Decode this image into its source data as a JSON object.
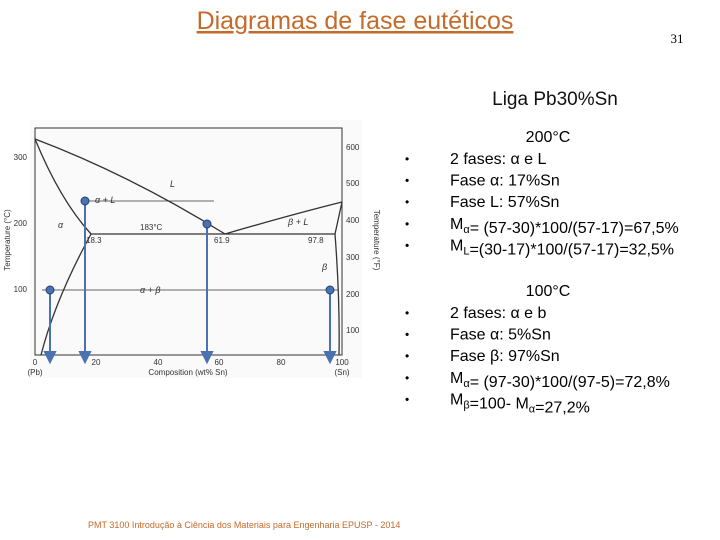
{
  "header": {
    "title": "Diagramas de fase eutéticos",
    "page_number": "31"
  },
  "subtitle": "Liga Pb30%Sn",
  "bullet": "•",
  "diagram": {
    "y_axis_left": "Temperature (°C)",
    "y_axis_right": "Temperature (°F)",
    "x_axis": "Composition (wt% Sn)",
    "left_ticks": [
      "300",
      "200",
      "100"
    ],
    "right_ticks": [
      "600",
      "500",
      "400",
      "300",
      "200",
      "100"
    ],
    "bottom_ticks": [
      "0",
      "20",
      "40",
      "60",
      "80",
      "100"
    ],
    "left_end": "(Pb)",
    "right_end": "(Sn)",
    "labels": [
      "L",
      "α + L",
      "β + L",
      "α",
      "β",
      "α + β",
      "183°C",
      "18.3",
      "61.9",
      "97.8"
    ]
  },
  "blocks": [
    {
      "heading": "200°C",
      "lines": [
        [
          "2 fases: α e L"
        ],
        [
          "Fase α: 17%Sn"
        ],
        [
          "Fase L: 57%Sn"
        ],
        [
          "M",
          {
            "sub": "α"
          },
          "= (57-30)*100/(57-17)=67,5%"
        ],
        [
          "M",
          {
            "sub": "L"
          },
          "=(30-17)*100/(57-17)=32,5%"
        ]
      ]
    },
    {
      "heading": "100°C",
      "lines": [
        [
          "2 fases: α e b"
        ],
        [
          "Fase α: 5%Sn"
        ],
        [
          "Fase β: 97%Sn"
        ],
        [
          "M",
          {
            "sub": "α"
          },
          "= (97-30)*100/(97-5)=72,8%"
        ],
        [
          "M",
          {
            "sub": "β"
          },
          "=100- M",
          {
            "sub": "α"
          },
          "=27,2%"
        ]
      ]
    }
  ],
  "footer": "PMT 3100 Introdução à Ciência dos Materiais para Engenharia EPUSP - 2014"
}
